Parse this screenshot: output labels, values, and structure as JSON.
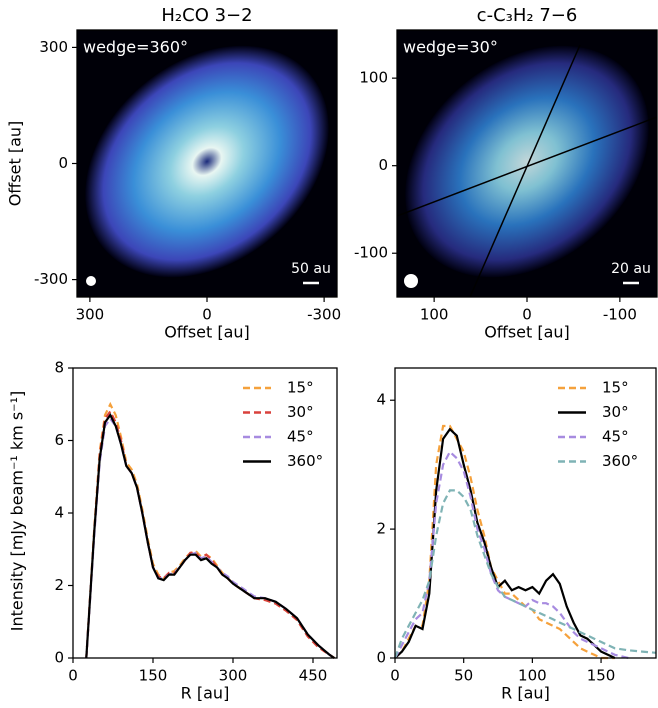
{
  "chart_data": [
    {
      "type": "image",
      "title": "H₂CO 3−2",
      "annotation": "wedge=360°",
      "scalebar_label": "50 au",
      "xlabel": "Offset [au]",
      "ylabel": "Offset [au]",
      "xlim": [
        333,
        -333
      ],
      "ylim": [
        -345,
        345
      ],
      "xticks": [
        300,
        0,
        -300
      ],
      "yticks": [
        -300,
        0,
        300
      ]
    },
    {
      "type": "image",
      "title": "c-C₃H₂ 7−6",
      "annotation": "wedge=30°",
      "scalebar_label": "20 au",
      "xlabel": "Offset [au]",
      "xlim": [
        140,
        -140
      ],
      "ylim": [
        -150,
        155
      ],
      "xticks": [
        100,
        0,
        -100
      ],
      "yticks": [
        -100,
        0,
        100
      ]
    },
    {
      "type": "line",
      "xlabel": "R [au]",
      "ylabel": "Intensity [mJy beam⁻¹ km s⁻¹]",
      "legend": "upper right",
      "xlim": [
        0,
        495
      ],
      "ylim": [
        0,
        8
      ],
      "xticks": [
        0,
        150,
        300,
        450
      ],
      "yticks": [
        0,
        2,
        4,
        6,
        8
      ],
      "x": [
        25,
        40,
        50,
        60,
        70,
        80,
        90,
        100,
        110,
        120,
        130,
        140,
        150,
        160,
        170,
        180,
        190,
        200,
        210,
        220,
        230,
        240,
        250,
        260,
        270,
        280,
        290,
        300,
        320,
        340,
        360,
        380,
        400,
        420,
        440,
        460,
        480,
        490
      ],
      "series": [
        {
          "name": "15°",
          "color": "#f5a13c",
          "linestyle": "dashed",
          "values": [
            0,
            3.6,
            5.7,
            6.7,
            7.0,
            6.7,
            6.1,
            5.4,
            5.2,
            4.8,
            4.1,
            3.3,
            2.6,
            2.3,
            2.2,
            2.35,
            2.4,
            2.55,
            2.75,
            2.9,
            2.95,
            2.8,
            2.85,
            2.75,
            2.55,
            2.35,
            2.2,
            2.05,
            1.85,
            1.65,
            1.6,
            1.5,
            1.3,
            1.05,
            0.6,
            0.3,
            0.1,
            0
          ]
        },
        {
          "name": "30°",
          "color": "#d9413c",
          "linestyle": "dashed",
          "values": [
            0,
            3.5,
            5.6,
            6.6,
            6.8,
            6.5,
            6.0,
            5.3,
            5.1,
            4.7,
            4.0,
            3.2,
            2.5,
            2.25,
            2.2,
            2.35,
            2.35,
            2.5,
            2.7,
            2.9,
            2.9,
            2.75,
            2.85,
            2.7,
            2.5,
            2.3,
            2.2,
            2.05,
            1.85,
            1.65,
            1.6,
            1.5,
            1.3,
            1.05,
            0.6,
            0.3,
            0.1,
            0
          ]
        },
        {
          "name": "45°",
          "color": "#a78be0",
          "linestyle": "dashed",
          "values": [
            0,
            3.4,
            5.4,
            6.4,
            6.6,
            6.4,
            5.9,
            5.3,
            5.1,
            4.7,
            4.0,
            3.2,
            2.5,
            2.2,
            2.2,
            2.3,
            2.35,
            2.5,
            2.7,
            2.85,
            2.9,
            2.75,
            2.8,
            2.65,
            2.5,
            2.35,
            2.25,
            2.1,
            1.9,
            1.7,
            1.65,
            1.55,
            1.35,
            1.1,
            0.65,
            0.35,
            0.1,
            0
          ]
        },
        {
          "name": "360°",
          "color": "#000000",
          "linestyle": "solid",
          "values": [
            0,
            3.5,
            5.5,
            6.5,
            6.7,
            6.4,
            5.9,
            5.3,
            5.1,
            4.7,
            4.0,
            3.2,
            2.5,
            2.2,
            2.15,
            2.3,
            2.3,
            2.5,
            2.7,
            2.85,
            2.85,
            2.7,
            2.75,
            2.6,
            2.5,
            2.3,
            2.2,
            2.05,
            1.85,
            1.65,
            1.65,
            1.55,
            1.35,
            1.1,
            0.65,
            0.35,
            0.1,
            0
          ]
        }
      ]
    },
    {
      "type": "line",
      "xlabel": "R [au]",
      "legend": "upper right",
      "xlim": [
        0,
        190
      ],
      "ylim": [
        0,
        4.5
      ],
      "xticks": [
        0,
        50,
        100,
        150
      ],
      "yticks": [
        0,
        2,
        4
      ],
      "x": [
        0,
        5,
        10,
        15,
        20,
        25,
        30,
        35,
        40,
        45,
        50,
        55,
        60,
        65,
        70,
        75,
        80,
        85,
        90,
        95,
        100,
        105,
        110,
        115,
        120,
        125,
        130,
        135,
        140,
        145,
        150,
        155,
        160,
        170,
        180,
        190
      ],
      "series": [
        {
          "name": "15°",
          "color": "#f5a13c",
          "linestyle": "dashed",
          "values": [
            0,
            0.1,
            0.3,
            0.5,
            0.5,
            1.2,
            3.0,
            3.6,
            3.6,
            3.4,
            3.2,
            2.8,
            2.3,
            1.9,
            1.4,
            1.2,
            1.0,
            1.0,
            0.9,
            0.8,
            0.75,
            0.6,
            0.55,
            0.5,
            0.45,
            0.35,
            0.25,
            0.15,
            0.1,
            0.05,
            0,
            0,
            0,
            null,
            null,
            null
          ]
        },
        {
          "name": "30°",
          "color": "#000000",
          "linestyle": "solid",
          "values": [
            0,
            0.1,
            0.25,
            0.5,
            0.45,
            1.0,
            2.6,
            3.4,
            3.55,
            3.45,
            3.0,
            2.6,
            2.1,
            1.8,
            1.4,
            1.1,
            1.2,
            1.05,
            1.1,
            1.05,
            1.1,
            1.0,
            1.2,
            1.3,
            1.15,
            0.8,
            0.55,
            0.35,
            0.3,
            0.2,
            0.1,
            0.05,
            0,
            null,
            null,
            null
          ]
        },
        {
          "name": "45°",
          "color": "#a78be0",
          "linestyle": "dashed",
          "values": [
            0,
            0.2,
            0.4,
            0.6,
            0.7,
            1.2,
            2.4,
            3.0,
            3.2,
            3.1,
            2.9,
            2.5,
            2.0,
            1.7,
            1.3,
            1.05,
            0.95,
            0.9,
            0.85,
            0.8,
            0.9,
            0.85,
            0.85,
            0.8,
            0.7,
            0.55,
            0.4,
            0.3,
            0.25,
            0.2,
            0.15,
            0.1,
            0.05,
            0,
            null,
            null
          ]
        },
        {
          "name": "360°",
          "color": "#7fb3b5",
          "linestyle": "dashed",
          "values": [
            0,
            0.3,
            0.5,
            0.7,
            0.9,
            1.2,
            1.9,
            2.4,
            2.6,
            2.6,
            2.5,
            2.3,
            1.9,
            1.6,
            1.3,
            1.1,
            0.95,
            0.9,
            0.85,
            0.8,
            0.75,
            0.7,
            0.65,
            0.6,
            0.55,
            0.5,
            0.45,
            0.4,
            0.35,
            0.3,
            0.25,
            0.2,
            0.15,
            0.12,
            0.1,
            0.08
          ]
        }
      ]
    }
  ]
}
